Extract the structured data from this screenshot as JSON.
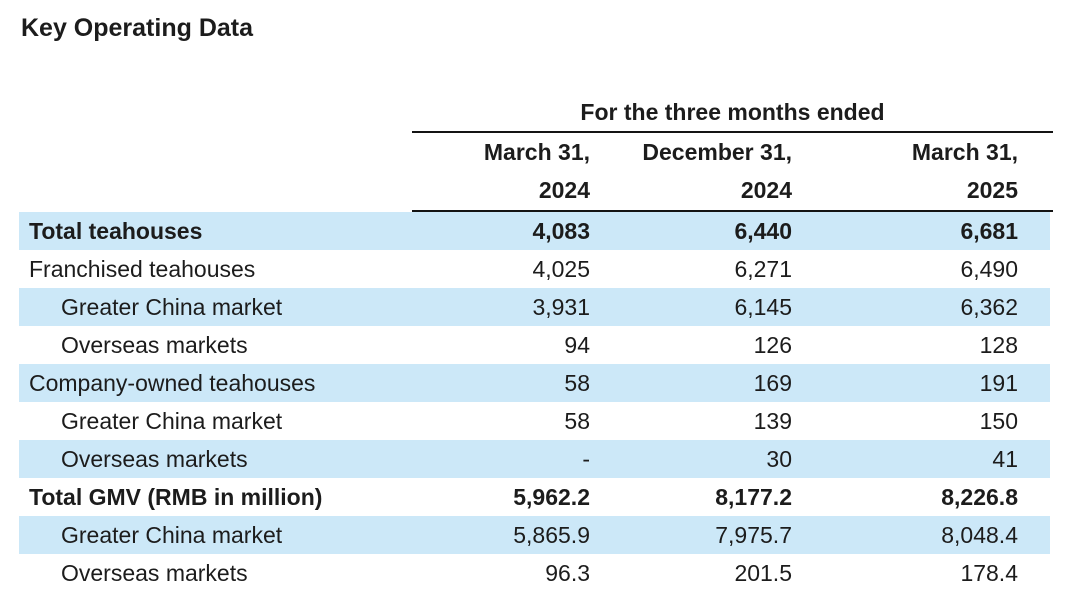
{
  "page": {
    "title": "Key Operating Data"
  },
  "table": {
    "span_header": "For the three months ended",
    "columns": [
      {
        "line1": "March 31,",
        "line2": "2024"
      },
      {
        "line1": "December 31,",
        "line2": "2024"
      },
      {
        "line1": "March 31,",
        "line2": "2025"
      }
    ],
    "rows": [
      {
        "label": "Total teahouses",
        "values": [
          "4,083",
          "6,440",
          "6,681"
        ],
        "bold": true,
        "indent": false,
        "shaded": true
      },
      {
        "label": "Franchised teahouses",
        "values": [
          "4,025",
          "6,271",
          "6,490"
        ],
        "bold": false,
        "indent": false,
        "shaded": false
      },
      {
        "label": "Greater China market",
        "values": [
          "3,931",
          "6,145",
          "6,362"
        ],
        "bold": false,
        "indent": true,
        "shaded": true
      },
      {
        "label": "Overseas markets",
        "values": [
          "94",
          "126",
          "128"
        ],
        "bold": false,
        "indent": true,
        "shaded": false
      },
      {
        "label": "Company-owned teahouses",
        "values": [
          "58",
          "169",
          "191"
        ],
        "bold": false,
        "indent": false,
        "shaded": true
      },
      {
        "label": "Greater China market",
        "values": [
          "58",
          "139",
          "150"
        ],
        "bold": false,
        "indent": true,
        "shaded": false
      },
      {
        "label": "Overseas markets",
        "values": [
          "-",
          "30",
          "41"
        ],
        "bold": false,
        "indent": true,
        "shaded": true
      },
      {
        "label": "Total GMV (RMB in million)",
        "values": [
          "5,962.2",
          "8,177.2",
          "8,226.8"
        ],
        "bold": true,
        "indent": false,
        "shaded": false
      },
      {
        "label": "Greater China market",
        "values": [
          "5,865.9",
          "7,975.7",
          "8,048.4"
        ],
        "bold": false,
        "indent": true,
        "shaded": true
      },
      {
        "label": "Overseas markets",
        "values": [
          "96.3",
          "201.5",
          "178.4"
        ],
        "bold": false,
        "indent": true,
        "shaded": false
      }
    ],
    "colors": {
      "row_highlight": "#cce8f8",
      "text": "#1c1c1c",
      "rule": "#141414"
    }
  }
}
